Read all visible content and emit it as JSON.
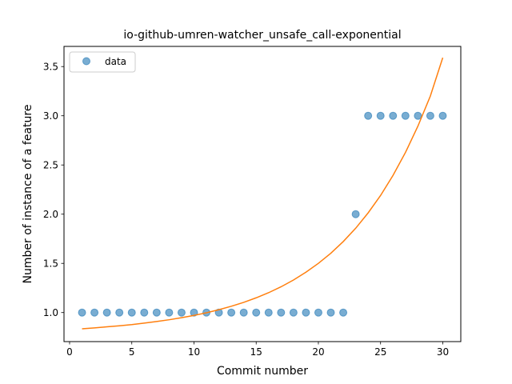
{
  "chart_data": {
    "type": "scatter",
    "title": "io-github-umren-watcher_unsafe_call-exponential",
    "xlabel": "Commit number",
    "ylabel": "Number of instance of a feature",
    "xlim": [
      -0.45,
      31.45
    ],
    "ylim": [
      0.705,
      3.705
    ],
    "xticks": [
      0,
      5,
      10,
      15,
      20,
      25,
      30
    ],
    "xtick_labels": [
      "0",
      "5",
      "10",
      "15",
      "20",
      "25",
      "30"
    ],
    "yticks": [
      1.0,
      1.5,
      2.0,
      2.5,
      3.0,
      3.5
    ],
    "ytick_labels": [
      "1.0",
      "1.5",
      "2.0",
      "2.5",
      "3.0",
      "3.5"
    ],
    "grid": false,
    "legend_position": "upper left",
    "series": [
      {
        "name": "data",
        "kind": "scatter",
        "color": "#1f77b4",
        "x": [
          1,
          2,
          3,
          4,
          5,
          6,
          7,
          8,
          9,
          10,
          11,
          12,
          13,
          14,
          15,
          16,
          17,
          18,
          19,
          20,
          21,
          22,
          23,
          24,
          25,
          26,
          27,
          28,
          29,
          30
        ],
        "y": [
          1,
          1,
          1,
          1,
          1,
          1,
          1,
          1,
          1,
          1,
          1,
          1,
          1,
          1,
          1,
          1,
          1,
          1,
          1,
          1,
          1,
          1,
          2,
          3,
          3,
          3,
          3,
          3,
          3,
          3
        ]
      },
      {
        "kind": "line",
        "color": "#ff7f0e",
        "x": [
          1,
          2,
          3,
          4,
          5,
          6,
          7,
          8,
          9,
          10,
          11,
          12,
          13,
          14,
          15,
          16,
          17,
          18,
          19,
          20,
          21,
          22,
          23,
          24,
          25,
          26,
          27,
          28,
          29,
          30
        ],
        "y": [
          0.835,
          0.844,
          0.855,
          0.866,
          0.878,
          0.893,
          0.909,
          0.927,
          0.948,
          0.971,
          0.998,
          1.029,
          1.064,
          1.104,
          1.15,
          1.202,
          1.262,
          1.331,
          1.41,
          1.5,
          1.603,
          1.722,
          1.857,
          2.013,
          2.19,
          2.394,
          2.627,
          2.894,
          3.2,
          3.59
        ]
      }
    ]
  }
}
